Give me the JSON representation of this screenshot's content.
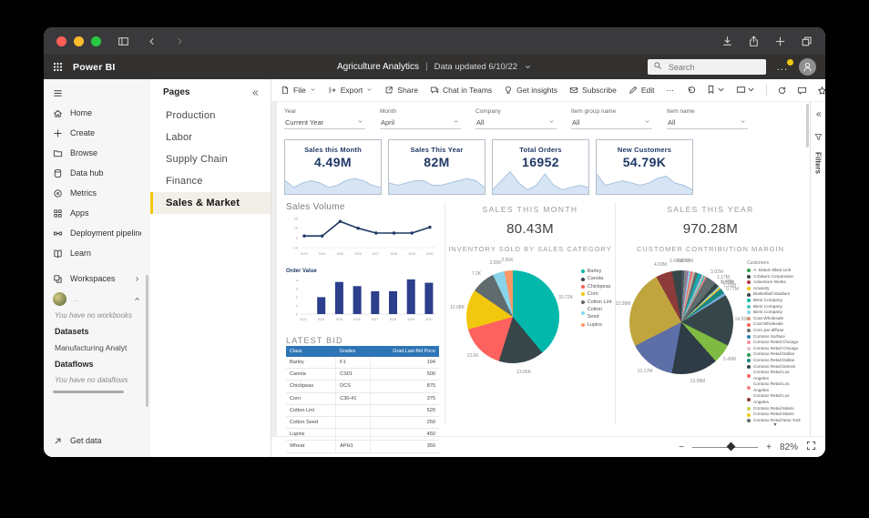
{
  "theme": {
    "accent_yellow": "#F2C80F",
    "navy": "#1F3864",
    "table_header_blue": "#2E75B6",
    "spark_fill": "#D6E4F4",
    "spark_stroke": "#A9C3DE"
  },
  "titlebar": {
    "back": "chevron-left-icon",
    "forward": "chevron-right-icon",
    "right_icons": [
      "download-icon",
      "macshare-icon",
      "plus-icon",
      "tabs-icon"
    ]
  },
  "pbi_header": {
    "app_name": "Power BI",
    "report_title": "Agriculture Analytics",
    "divider": "|",
    "updated_label": "Data updated 6/10/22",
    "search_placeholder": "Search",
    "more_label": "..."
  },
  "sidebar": {
    "items": [
      {
        "label": "Home",
        "icon": "home-icon"
      },
      {
        "label": "Create",
        "icon": "plus-icon"
      },
      {
        "label": "Browse",
        "icon": "folder-icon"
      },
      {
        "label": "Data hub",
        "icon": "database-icon"
      },
      {
        "label": "Metrics",
        "icon": "metrics-icon"
      },
      {
        "label": "Apps",
        "icon": "apps-icon"
      },
      {
        "label": "Deployment pipelines",
        "icon": "pipelines-icon"
      },
      {
        "label": "Learn",
        "icon": "book-icon"
      }
    ],
    "workspaces_label": "Workspaces",
    "workspace": {
      "dots": "..",
      "empty_workbooks": "You have no workbooks",
      "datasets_label": "Datasets",
      "dataset_name": "Manufacturing Analyt",
      "dataflows_label": "Dataflows",
      "empty_dataflows": "You have no dataflows"
    },
    "get_data_label": "Get data"
  },
  "pages_panel": {
    "title": "Pages",
    "items": [
      "Production",
      "Labor",
      "Supply Chain",
      "Finance",
      "Sales & Market"
    ],
    "active_index": 4
  },
  "toolbar": {
    "left": [
      {
        "label": "File",
        "icon": "file-icon",
        "chevron": true
      },
      {
        "label": "Export",
        "icon": "export-icon",
        "chevron": true
      },
      {
        "label": "Share",
        "icon": "share2-icon"
      },
      {
        "label": "Chat in Teams",
        "icon": "teams-icon"
      },
      {
        "label": "Get insights",
        "icon": "bulb-icon"
      },
      {
        "label": "Subscribe",
        "icon": "envelope-icon"
      },
      {
        "label": "Edit",
        "icon": "pencil-icon"
      },
      {
        "label": "⋯"
      }
    ],
    "right": [
      {
        "icon": "undo-icon"
      },
      {
        "icon": "bookmark-icon",
        "chevron": true
      },
      {
        "icon": "view-icon",
        "chevron": true
      },
      {
        "divider": true
      },
      {
        "icon": "refresh-icon"
      },
      {
        "icon": "comment-icon"
      },
      {
        "icon": "star-icon"
      }
    ]
  },
  "filters_bar": [
    {
      "label": "Year",
      "value": "Current Year"
    },
    {
      "label": "Month",
      "value": "April"
    },
    {
      "label": "Company",
      "value": "All"
    },
    {
      "label": "Item group name",
      "value": "All"
    },
    {
      "label": "Item name",
      "value": "All"
    }
  ],
  "filters_rail_label": "Filters",
  "status_bar": {
    "zoom_level": "82%"
  },
  "chart_data": [
    {
      "id": "kpi-sales-month",
      "type": "area",
      "title": "Sales this Month",
      "value": "4.49M",
      "points": [
        5,
        2,
        4,
        5,
        4,
        2,
        3,
        5,
        6,
        5,
        3,
        2
      ]
    },
    {
      "id": "kpi-sales-year",
      "type": "area",
      "title": "Sales This Year",
      "value": "82M",
      "points": [
        4,
        3,
        4,
        5,
        5,
        3,
        3,
        4,
        5,
        6,
        5,
        2
      ]
    },
    {
      "id": "kpi-total-orders",
      "type": "area",
      "title": "Total Orders",
      "value": "16952",
      "points": [
        1,
        5,
        9,
        4,
        1,
        3,
        8,
        3,
        1,
        2,
        3,
        2
      ]
    },
    {
      "id": "kpi-new-customers",
      "type": "area",
      "title": "New Customers",
      "value": "54.79K",
      "points": [
        8,
        3,
        4,
        5,
        4,
        3,
        4,
        6,
        7,
        4,
        3,
        1
      ]
    },
    {
      "id": "sales-volume",
      "type": "line",
      "title": "Sales Volume",
      "color": "#1F3864",
      "x": [
        "5/23",
        "5/24",
        "5/25",
        "5/26",
        "5/27",
        "5/28",
        "5/29",
        "5/30"
      ],
      "values": [
        2,
        2,
        17,
        10,
        5,
        5,
        5,
        11
      ],
      "yticks": [
        20,
        10,
        0,
        -10
      ],
      "ylim": [
        -10,
        20
      ]
    },
    {
      "id": "order-value",
      "type": "bar",
      "title": "Order Value",
      "color": "#2B3F8C",
      "x": [
        "5/23",
        "5/24",
        "5/25",
        "5/26",
        "5/27",
        "5/28",
        "5/29",
        "5/30"
      ],
      "values": [
        0,
        2,
        3.8,
        3.3,
        2.7,
        2.7,
        4.1,
        3.7
      ],
      "yticks": [
        4,
        3,
        2,
        1,
        0
      ],
      "ylim": [
        0,
        4
      ]
    },
    {
      "id": "latest-bid",
      "type": "table",
      "title": "LATEST BID",
      "columns": [
        "Class",
        "Grades",
        "Grad.Last Bid Price"
      ],
      "rows": [
        [
          "Barley",
          "F1",
          "194"
        ],
        [
          "Canola",
          "CS01",
          "500"
        ],
        [
          "Chickpeas",
          "DCS",
          "875"
        ],
        [
          "Corn",
          "C30-41",
          "375"
        ],
        [
          "Cotton Lint",
          "",
          "520"
        ],
        [
          "Cotton Seed",
          "",
          "250"
        ],
        [
          "Lupins",
          "",
          "450"
        ],
        [
          "Wheat",
          "APH1",
          "350"
        ]
      ]
    },
    {
      "id": "inventory-pie",
      "type": "pie",
      "kpi_label": "SALES THIS MONTH",
      "kpi_value": "80.43M",
      "title": "INVENTORY SOLD BY SALES CATEGORY",
      "slices": [
        {
          "name": "Barley",
          "value": 33.72,
          "label": "33.72K",
          "color": "#01B8AA"
        },
        {
          "name": "Canola",
          "value": 13.65,
          "label": "13.65K",
          "color": "#374649"
        },
        {
          "name": "Chickpeas",
          "value": 13.6,
          "label": "13.6K",
          "color": "#FD625E"
        },
        {
          "name": "Corn",
          "value": 12.08,
          "label": "12.08K",
          "color": "#F2C80F"
        },
        {
          "name": "Cotton Lint",
          "value": 7.2,
          "label": "7.2K",
          "color": "#5F6B6D"
        },
        {
          "name": "Cotton Seed",
          "value": 3.55,
          "label": "3.55K",
          "color": "#8AD4EB"
        },
        {
          "name": "Lupins",
          "value": 2.55,
          "label": "2.55K",
          "color": "#FE9666"
        }
      ]
    },
    {
      "id": "customer-pie",
      "type": "pie",
      "kpi_label": "SALES THIS YEAR",
      "kpi_value": "970.28M",
      "title": "CUSTOMER CONTRIBUTION MARGIN",
      "legend_title": "Customers",
      "legend_more": "▾",
      "slices": [
        {
          "value": 0.85,
          "color": "#46555F",
          "label": "0.85M"
        },
        {
          "value": 0.73,
          "color": "#808A8C",
          "label": "0.73M"
        },
        {
          "value": 0.45,
          "color": "#A66999"
        },
        {
          "value": 0.6,
          "color": "#8AD4EB"
        },
        {
          "value": 0.5,
          "color": "#FD625E"
        },
        {
          "value": 0.7,
          "color": "#C9B8A8"
        },
        {
          "value": 0.9,
          "color": "#5F6B6D"
        },
        {
          "value": 0.55,
          "color": "#01B8AA"
        },
        {
          "value": 0.65,
          "color": "#3599B8"
        },
        {
          "value": 0.45,
          "color": "#DFBFBF"
        },
        {
          "value": 0.5,
          "color": "#4AC5BB"
        },
        {
          "value": 0.45,
          "color": "#FB8281"
        },
        {
          "value": 3.02,
          "color": "#5F6B6D",
          "label": "3.02M"
        },
        {
          "value": 1.17,
          "color": "#374649",
          "label": "1.17M"
        },
        {
          "value": 0.4,
          "color": "#8AD4EB"
        },
        {
          "value": 0.47,
          "color": "#F2C80F",
          "label": "0.47M"
        },
        {
          "value": 0.25,
          "color": "#2C7BB5",
          "label": "0.25M"
        },
        {
          "value": 1.31,
          "color": "#168980",
          "label": "1.31M"
        },
        {
          "value": 0.77,
          "color": "#77ABD9",
          "label": "0.77M"
        },
        {
          "value": 14.55,
          "color": "#374649",
          "label": "14.55M"
        },
        {
          "value": 5.49,
          "color": "#7FBA42",
          "label": "5.49M"
        },
        {
          "value": 13.08,
          "color": "#2F3B47",
          "label": "13.08M"
        },
        {
          "value": 13.17,
          "color": "#5C6FA7",
          "label": "13.17M"
        },
        {
          "value": 22.09,
          "color": "#C0A53E",
          "label": "22.09M"
        },
        {
          "value": 4.63,
          "color": "#8C3A3A",
          "label": "4.63M"
        },
        {
          "value": 2.64,
          "color": "#374649",
          "label": "2.64M"
        }
      ],
      "legend": [
        {
          "name": "A. Datum Blast Link",
          "color": "#2E9E4F"
        },
        {
          "name": "A.Datum Corporation",
          "color": "#374649"
        },
        {
          "name": "Adventure Works",
          "color": "#B23A48"
        },
        {
          "name": "Amarety",
          "color": "#F2C80F"
        },
        {
          "name": "Basketball Stadium",
          "color": "#374649"
        },
        {
          "name": "Bieni Company",
          "color": "#01B8AA"
        },
        {
          "name": "Bieni Company",
          "color": "#4AC5BB"
        },
        {
          "name": "Bieni Company",
          "color": "#8AD4EB"
        },
        {
          "name": "Coat Wholesale",
          "color": "#FE9666"
        },
        {
          "name": "Coal Wholesale",
          "color": "#FD625E"
        },
        {
          "name": "Corn par diffuse",
          "color": "#5F6B6D"
        },
        {
          "name": "Contoso Surface",
          "color": "#2C7BB5"
        },
        {
          "name": "Contoso Retail Chicago",
          "color": "#F78DA7"
        },
        {
          "name": "Contoso Retail Chicago",
          "color": "#DFBFBF"
        },
        {
          "name": "Contoso Retail Dallas",
          "color": "#2E9E4F"
        },
        {
          "name": "Contoso Retail Dallas",
          "color": "#168980"
        },
        {
          "name": "Contoso Retail Detroit",
          "color": "#374649"
        },
        {
          "name": "Contoso Retail Los Angeles",
          "color": "#FD625E"
        },
        {
          "name": "Contoso Retail Los Angeles",
          "color": "#FB8281"
        },
        {
          "name": "Contoso Retail Los Angeles",
          "color": "#8C3A3A"
        },
        {
          "name": "Contoso Retail Miami",
          "color": "#C6D24B"
        },
        {
          "name": "Contoso Retail Miami",
          "color": "#F2C80F"
        },
        {
          "name": "Contoso Retail New York",
          "color": "#5F6B6D"
        }
      ]
    }
  ]
}
